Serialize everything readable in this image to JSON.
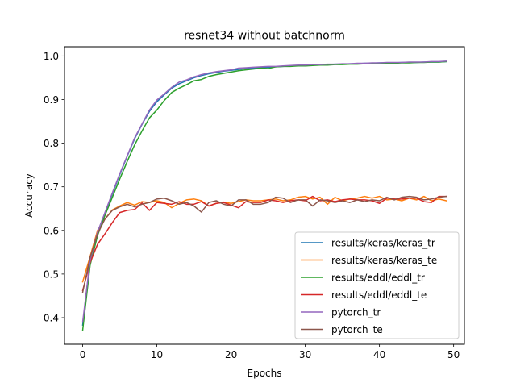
{
  "chart_data": {
    "type": "line",
    "title": "resnet34 without batchnorm",
    "xlabel": "Epochs",
    "ylabel": "Accuracy",
    "xlim": [
      -2.45,
      51.45
    ],
    "ylim": [
      0.339,
      1.021
    ],
    "xticks": [
      0,
      10,
      20,
      30,
      40,
      50
    ],
    "yticks": [
      0.4,
      0.5,
      0.6,
      0.7,
      0.8,
      0.9,
      1.0
    ],
    "xtick_labels": [
      "0",
      "10",
      "20",
      "30",
      "40",
      "50"
    ],
    "ytick_labels": [
      "0.4",
      "0.5",
      "0.6",
      "0.7",
      "0.8",
      "0.9",
      "1.0"
    ],
    "legend_position": "lower-right",
    "grid": false,
    "series": [
      {
        "name": "results/keras/keras_tr",
        "color": "#1f77b4",
        "values": [
          0.383,
          0.53,
          0.596,
          0.639,
          0.684,
          0.728,
          0.77,
          0.81,
          0.843,
          0.873,
          0.895,
          0.911,
          0.926,
          0.936,
          0.943,
          0.95,
          0.955,
          0.959,
          0.962,
          0.965,
          0.967,
          0.969,
          0.971,
          0.972,
          0.973,
          0.974,
          0.975,
          0.976,
          0.977,
          0.978,
          0.978,
          0.979,
          0.98,
          0.98,
          0.981,
          0.981,
          0.982,
          0.982,
          0.983,
          0.983,
          0.984,
          0.984,
          0.984,
          0.985,
          0.985,
          0.985,
          0.986,
          0.986,
          0.986,
          0.987
        ]
      },
      {
        "name": "results/keras/keras_te",
        "color": "#ff7f0e",
        "values": [
          0.482,
          0.54,
          0.6,
          0.626,
          0.647,
          0.656,
          0.664,
          0.658,
          0.666,
          0.664,
          0.668,
          0.664,
          0.652,
          0.662,
          0.67,
          0.672,
          0.668,
          0.656,
          0.662,
          0.665,
          0.662,
          0.666,
          0.67,
          0.668,
          0.668,
          0.67,
          0.672,
          0.668,
          0.67,
          0.676,
          0.678,
          0.672,
          0.676,
          0.66,
          0.676,
          0.668,
          0.672,
          0.674,
          0.678,
          0.674,
          0.678,
          0.67,
          0.672,
          0.668,
          0.674,
          0.67,
          0.678,
          0.668,
          0.672,
          0.668
        ]
      },
      {
        "name": "results/eddl/eddl_tr",
        "color": "#2ca02c",
        "values": [
          0.371,
          0.52,
          0.588,
          0.634,
          0.676,
          0.718,
          0.758,
          0.796,
          0.828,
          0.858,
          0.876,
          0.898,
          0.916,
          0.926,
          0.934,
          0.943,
          0.946,
          0.953,
          0.957,
          0.96,
          0.963,
          0.966,
          0.968,
          0.97,
          0.972,
          0.971,
          0.975,
          0.976,
          0.976,
          0.977,
          0.977,
          0.978,
          0.979,
          0.979,
          0.98,
          0.98,
          0.981,
          0.981,
          0.982,
          0.982,
          0.982,
          0.983,
          0.983,
          0.984,
          0.984,
          0.985,
          0.985,
          0.986,
          0.986,
          0.987
        ]
      },
      {
        "name": "results/eddl/eddl_te",
        "color": "#d62728",
        "values": [
          0.462,
          0.526,
          0.568,
          0.592,
          0.618,
          0.641,
          0.646,
          0.648,
          0.663,
          0.646,
          0.664,
          0.662,
          0.66,
          0.666,
          0.66,
          0.66,
          0.666,
          0.656,
          0.662,
          0.664,
          0.658,
          0.652,
          0.666,
          0.664,
          0.664,
          0.67,
          0.668,
          0.664,
          0.668,
          0.67,
          0.668,
          0.678,
          0.668,
          0.67,
          0.666,
          0.67,
          0.672,
          0.67,
          0.67,
          0.668,
          0.662,
          0.674,
          0.672,
          0.672,
          0.674,
          0.674,
          0.666,
          0.664,
          0.678,
          0.678
        ]
      },
      {
        "name": "pytorch_tr",
        "color": "#9467bd",
        "values": [
          0.39,
          0.531,
          0.596,
          0.641,
          0.686,
          0.73,
          0.771,
          0.812,
          0.844,
          0.876,
          0.899,
          0.913,
          0.928,
          0.94,
          0.945,
          0.952,
          0.957,
          0.961,
          0.964,
          0.966,
          0.968,
          0.972,
          0.973,
          0.974,
          0.975,
          0.976,
          0.976,
          0.977,
          0.978,
          0.979,
          0.979,
          0.98,
          0.98,
          0.981,
          0.981,
          0.982,
          0.982,
          0.983,
          0.983,
          0.984,
          0.984,
          0.985,
          0.985,
          0.985,
          0.986,
          0.986,
          0.986,
          0.987,
          0.987,
          0.988
        ]
      },
      {
        "name": "pytorch_te",
        "color": "#8c564b",
        "values": [
          0.458,
          0.538,
          0.592,
          0.626,
          0.646,
          0.654,
          0.66,
          0.654,
          0.66,
          0.664,
          0.672,
          0.674,
          0.668,
          0.66,
          0.664,
          0.656,
          0.642,
          0.664,
          0.668,
          0.66,
          0.656,
          0.67,
          0.67,
          0.66,
          0.66,
          0.664,
          0.676,
          0.674,
          0.664,
          0.67,
          0.67,
          0.656,
          0.67,
          0.668,
          0.664,
          0.668,
          0.664,
          0.67,
          0.666,
          0.67,
          0.668,
          0.676,
          0.67,
          0.676,
          0.678,
          0.676,
          0.67,
          0.672,
          0.676,
          0.678
        ]
      }
    ]
  }
}
